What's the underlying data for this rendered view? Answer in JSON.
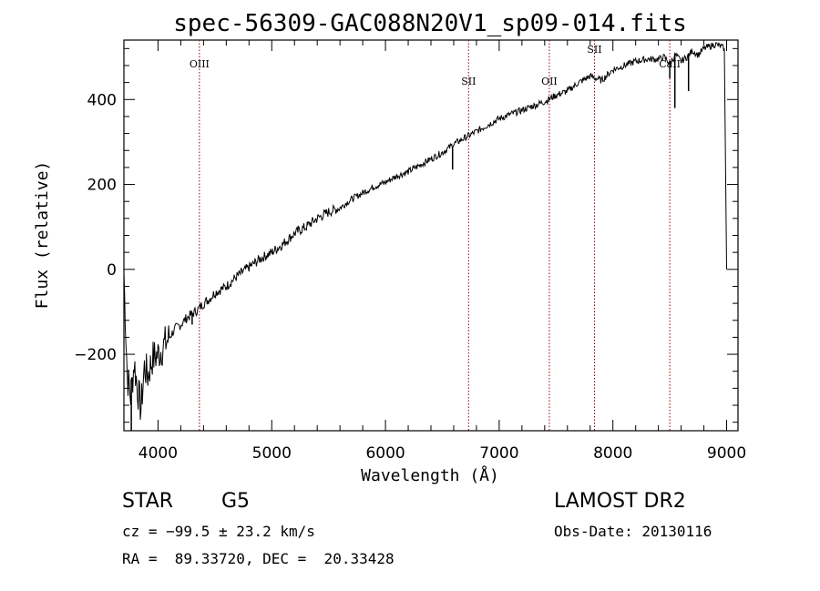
{
  "chart_data": {
    "type": "line",
    "title": "spec-56309-GAC088N20V1_sp09-014.fits",
    "xlabel": "Wavelength (Å)",
    "ylabel": "Flux (relative)",
    "xlim": [
      3700,
      9100
    ],
    "ylim": [
      -380,
      540
    ],
    "xticks": [
      4000,
      5000,
      6000,
      7000,
      8000,
      9000
    ],
    "yticks": [
      -200,
      0,
      200,
      400
    ],
    "grid": false,
    "series": [
      {
        "x": [
          3700,
          3730,
          3760,
          3790,
          3820,
          3850,
          3880,
          3910,
          3950,
          4000,
          4050,
          4100,
          4150,
          4200,
          4250,
          4300,
          4350,
          4400,
          4450,
          4500,
          4600,
          4700,
          4800,
          4900,
          5000,
          5100,
          5200,
          5300,
          5400,
          5500,
          5600,
          5700,
          5800,
          5900,
          6000,
          6100,
          6200,
          6300,
          6400,
          6500,
          6600,
          6700,
          6800,
          6900,
          7000,
          7100,
          7200,
          7300,
          7400,
          7500,
          7600,
          7700,
          7800,
          7850,
          7900,
          8000,
          8100,
          8200,
          8300,
          8400,
          8450,
          8500,
          8550,
          8600,
          8650,
          8700,
          8750,
          8800,
          8850,
          8900,
          8950,
          8980,
          9000
        ],
        "y": [
          -10,
          -250,
          -300,
          -220,
          -280,
          -330,
          -230,
          -250,
          -210,
          -200,
          -180,
          -160,
          -140,
          -130,
          -115,
          -105,
          -95,
          -80,
          -70,
          -55,
          -40,
          -15,
          5,
          25,
          40,
          60,
          85,
          100,
          120,
          135,
          145,
          165,
          180,
          195,
          205,
          220,
          230,
          245,
          260,
          275,
          295,
          310,
          325,
          340,
          355,
          365,
          375,
          385,
          395,
          410,
          420,
          440,
          455,
          450,
          445,
          470,
          480,
          490,
          495,
          495,
          500,
          485,
          505,
          490,
          500,
          515,
          505,
          520,
          525,
          530,
          525,
          520,
          0
        ],
        "absorption": [
          {
            "x": 3765,
            "y": -380
          },
          {
            "x": 4300,
            "y": -130
          },
          {
            "x": 6590,
            "y": 235
          },
          {
            "x": 8500,
            "y": 450
          },
          {
            "x": 8545,
            "y": 380
          },
          {
            "x": 8665,
            "y": 420
          },
          {
            "x": 8995,
            "y": 0
          }
        ]
      }
    ],
    "lines": [
      {
        "x": 4364,
        "label": "OIII"
      },
      {
        "x": 6731,
        "label": "SII"
      },
      {
        "x": 7441,
        "label": "OII"
      },
      {
        "x": 7838,
        "label": "SII"
      },
      {
        "x": 8500,
        "label": "CaII"
      }
    ],
    "line_color": "#990000"
  },
  "info": {
    "class": "STAR",
    "subclass": "G5",
    "survey": "LAMOST DR2",
    "cz": "cz = −99.5 ± 23.2 km/s",
    "obs_date": "Obs-Date: 20130116",
    "coords": "RA =  89.33720, DEC =  20.33428"
  }
}
